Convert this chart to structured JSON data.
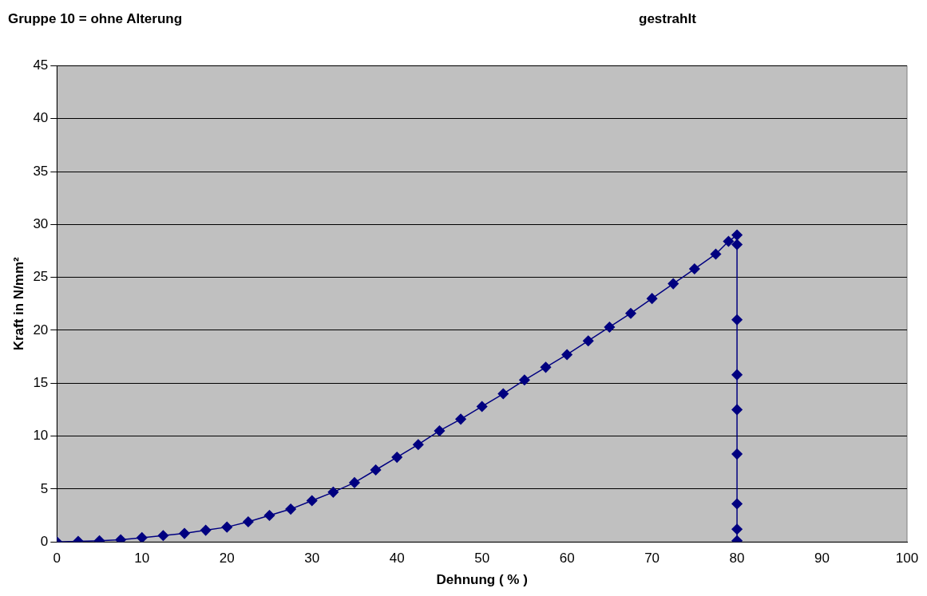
{
  "chart_data": {
    "type": "line",
    "title": "Gruppe 10 = ohne Alterung",
    "annotations": [
      "gestrahlt"
    ],
    "xlabel": "Dehnung ( % )",
    "ylabel": "Kraft in N/mm²",
    "series": [
      {
        "color": "#000080",
        "x": [
          0,
          2.5,
          5,
          7.5,
          10,
          12.5,
          15,
          17.5,
          20,
          22.5,
          25,
          27.5,
          30,
          32.5,
          35,
          37.5,
          40,
          42.5,
          45,
          47.5,
          50,
          52.5,
          55,
          57.5,
          60,
          62.5,
          65,
          67.5,
          70,
          72.5,
          75,
          77.5,
          79,
          80,
          80,
          80,
          80,
          80,
          80,
          80,
          80,
          80
        ],
        "values": [
          0,
          0.05,
          0.1,
          0.2,
          0.4,
          0.6,
          0.8,
          1.1,
          1.4,
          1.9,
          2.5,
          3.1,
          3.9,
          4.7,
          5.6,
          6.8,
          8,
          9.2,
          10.5,
          11.6,
          12.8,
          14,
          15.3,
          16.5,
          17.7,
          19,
          20.3,
          21.6,
          23,
          24.4,
          25.8,
          27.2,
          28.4,
          29,
          28.1,
          21,
          15.8,
          12.5,
          8.3,
          3.6,
          1.2,
          0.1
        ]
      }
    ],
    "xlim": [
      0,
      100
    ],
    "xticks": [
      0,
      10,
      20,
      30,
      40,
      50,
      60,
      70,
      80,
      90,
      100
    ],
    "ylim": [
      0,
      45
    ],
    "yticks": [
      0,
      5,
      10,
      15,
      20,
      25,
      30,
      35,
      40,
      45
    ],
    "grid": "y",
    "legend": false,
    "marker": "diamond",
    "line_style": "solid"
  }
}
